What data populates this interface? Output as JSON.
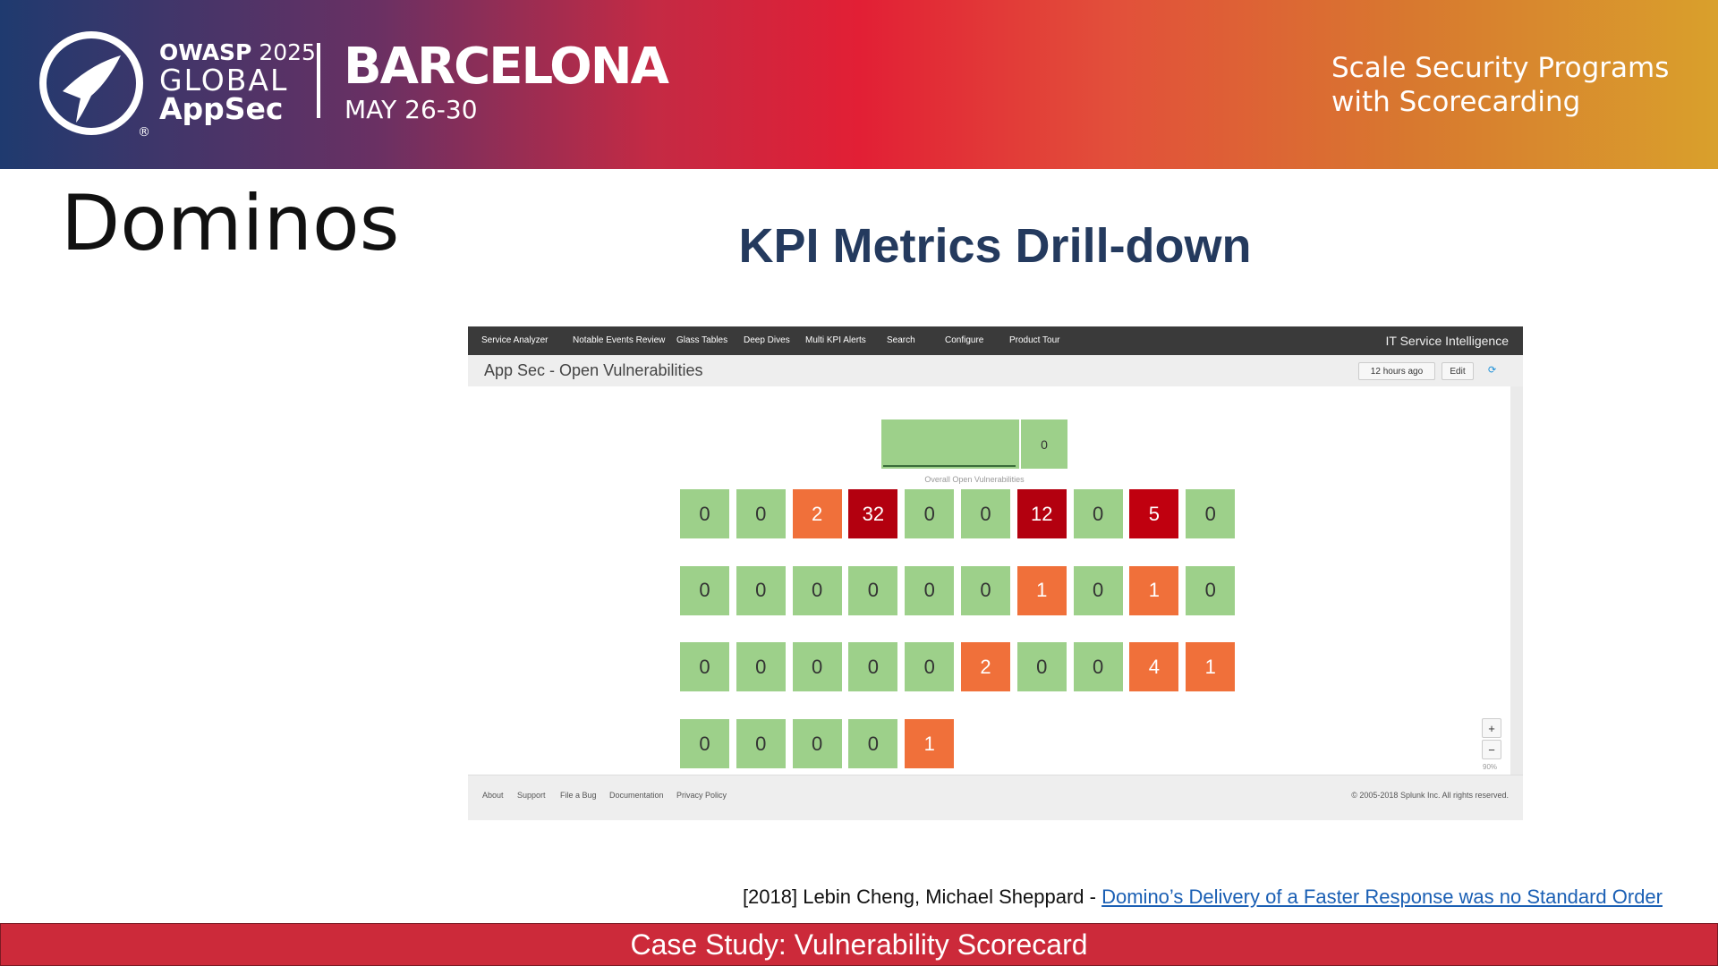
{
  "header": {
    "org": "OWASP",
    "year": "2025",
    "line2": "GLOBAL",
    "line3": "AppSec",
    "registered": "®",
    "city": "BARCELONA",
    "dates": "MAY 26-30",
    "tagline_1": "Scale Security Programs",
    "tagline_2": "with Scorecarding"
  },
  "slide": {
    "title": "Dominos",
    "heading": "KPI Metrics Drill-down"
  },
  "app": {
    "nav": [
      "Service Analyzer",
      "Notable Events Review",
      "Glass Tables",
      "Deep Dives",
      "Multi KPI Alerts",
      "Search",
      "Configure",
      "Product Tour"
    ],
    "product": "IT Service Intelligence",
    "dashboard": "App Sec - Open Vulnerabilities",
    "time_picker": "12 hours ago",
    "edit": "Edit",
    "overall": {
      "value": 0,
      "label": "Overall Open Vulnerabilities",
      "color": "#9dd08a"
    },
    "tiles": [
      [
        {
          "value": 0,
          "color": "#9dd08a"
        },
        {
          "value": 0,
          "color": "#9dd08a"
        },
        {
          "value": 2,
          "color": "#f0703a"
        },
        {
          "value": 32,
          "color": "#b3000f"
        },
        {
          "value": 0,
          "color": "#9dd08a"
        },
        {
          "value": 0,
          "color": "#9dd08a"
        },
        {
          "value": 12,
          "color": "#b3000f"
        },
        {
          "value": 0,
          "color": "#9dd08a"
        },
        {
          "value": 5,
          "color": "#c0000f"
        },
        {
          "value": 0,
          "color": "#9dd08a"
        }
      ],
      [
        {
          "value": 0,
          "color": "#9dd08a"
        },
        {
          "value": 0,
          "color": "#9dd08a"
        },
        {
          "value": 0,
          "color": "#9dd08a"
        },
        {
          "value": 0,
          "color": "#9dd08a"
        },
        {
          "value": 0,
          "color": "#9dd08a"
        },
        {
          "value": 0,
          "color": "#9dd08a"
        },
        {
          "value": 1,
          "color": "#f0703a"
        },
        {
          "value": 0,
          "color": "#9dd08a"
        },
        {
          "value": 1,
          "color": "#f0703a"
        },
        {
          "value": 0,
          "color": "#9dd08a"
        }
      ],
      [
        {
          "value": 0,
          "color": "#9dd08a"
        },
        {
          "value": 0,
          "color": "#9dd08a"
        },
        {
          "value": 0,
          "color": "#9dd08a"
        },
        {
          "value": 0,
          "color": "#9dd08a"
        },
        {
          "value": 0,
          "color": "#9dd08a"
        },
        {
          "value": 2,
          "color": "#f0703a"
        },
        {
          "value": 0,
          "color": "#9dd08a"
        },
        {
          "value": 0,
          "color": "#9dd08a"
        },
        {
          "value": 4,
          "color": "#f0703a"
        },
        {
          "value": 1,
          "color": "#f0703a"
        }
      ],
      [
        {
          "value": 0,
          "color": "#9dd08a"
        },
        {
          "value": 0,
          "color": "#9dd08a"
        },
        {
          "value": 0,
          "color": "#9dd08a"
        },
        {
          "value": 0,
          "color": "#9dd08a"
        },
        {
          "value": 1,
          "color": "#f0703a"
        }
      ]
    ],
    "zoom_in": "+",
    "zoom_out": "−",
    "zoom_level": "90%",
    "footer_links": [
      "About",
      "Support",
      "File a Bug",
      "Documentation",
      "Privacy Policy"
    ],
    "copyright": "© 2005-2018 Splunk Inc. All rights reserved."
  },
  "citation": {
    "text": "[2018] Lebin Cheng, Michael Sheppard -",
    "link": "Domino’s Delivery of a Faster Response was no Standard Order"
  },
  "banner": "Case Study: Vulnerability Scorecard"
}
